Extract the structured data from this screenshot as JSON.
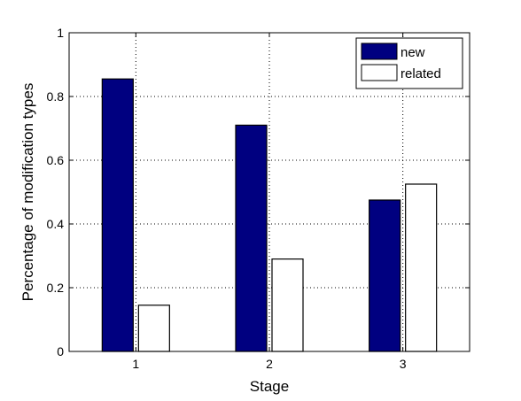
{
  "chart_data": {
    "type": "bar",
    "categories": [
      "1",
      "2",
      "3"
    ],
    "series": [
      {
        "name": "new",
        "values": [
          0.855,
          0.71,
          0.475
        ],
        "color": "#000080"
      },
      {
        "name": "related",
        "values": [
          0.145,
          0.29,
          0.525
        ],
        "color": "#ffffff"
      }
    ],
    "xlabel": "Stage",
    "ylabel": "Percentage of modification types",
    "ylim": [
      0,
      1
    ],
    "yticks": [
      0,
      0.2,
      0.4,
      0.6,
      0.8,
      1
    ],
    "ytick_labels": [
      "0",
      "0.2",
      "0.4",
      "0.6",
      "0.8",
      "1"
    ],
    "grid": true,
    "legend_position": "top-right"
  }
}
